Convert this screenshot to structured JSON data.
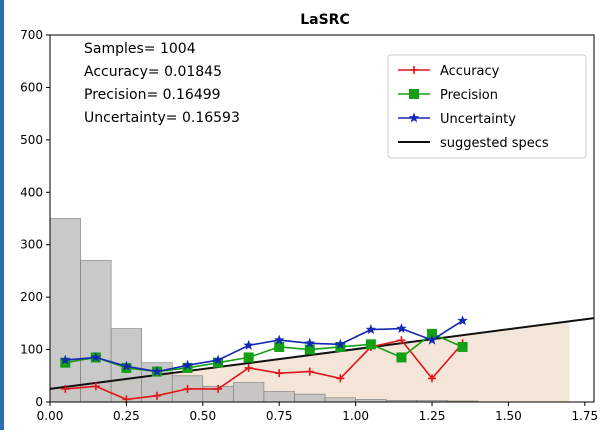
{
  "chart_data": {
    "type": "line",
    "title": "LaSRC",
    "xlabel": "",
    "ylabel": "",
    "xlim": [
      0.0,
      1.78
    ],
    "ylim": [
      0,
      700
    ],
    "x_ticks": [
      "0.00",
      "0.25",
      "0.50",
      "0.75",
      "1.00",
      "1.25",
      "1.50",
      "1.75"
    ],
    "y_ticks": [
      "0",
      "100",
      "200",
      "300",
      "400",
      "500",
      "600",
      "700"
    ],
    "grid": false,
    "legend_position": "top-right",
    "stats": [
      "Samples= 1004",
      "Accuracy= 0.01845",
      "Precision= 0.16499",
      "Uncertainty= 0.16593"
    ],
    "histogram": {
      "color": "#c0c0c0",
      "bin_width": 0.1,
      "bins": [
        {
          "x": 0.0,
          "value": 350
        },
        {
          "x": 0.1,
          "value": 270
        },
        {
          "x": 0.2,
          "value": 140
        },
        {
          "x": 0.3,
          "value": 75
        },
        {
          "x": 0.4,
          "value": 50
        },
        {
          "x": 0.5,
          "value": 30
        },
        {
          "x": 0.6,
          "value": 37
        },
        {
          "x": 0.7,
          "value": 20
        },
        {
          "x": 0.8,
          "value": 15
        },
        {
          "x": 0.9,
          "value": 8
        },
        {
          "x": 1.0,
          "value": 5
        },
        {
          "x": 1.1,
          "value": 3
        },
        {
          "x": 1.2,
          "value": 3
        },
        {
          "x": 1.3,
          "value": 2
        }
      ]
    },
    "spec_fill_color": "#f3e6d8",
    "series": [
      {
        "name": "Accuracy",
        "color": "#e0141a",
        "marker": "plus",
        "x": [
          0.05,
          0.15,
          0.25,
          0.35,
          0.45,
          0.55,
          0.65,
          0.75,
          0.85,
          0.95,
          1.05,
          1.15,
          1.25,
          1.35
        ],
        "y": [
          25,
          30,
          5,
          12,
          25,
          25,
          65,
          55,
          58,
          45,
          105,
          118,
          45,
          112
        ]
      },
      {
        "name": "Precision",
        "color": "#14a014",
        "marker": "square",
        "x": [
          0.05,
          0.15,
          0.25,
          0.35,
          0.45,
          0.55,
          0.65,
          0.75,
          0.85,
          0.95,
          1.05,
          1.15,
          1.25,
          1.35
        ],
        "y": [
          75,
          85,
          65,
          58,
          65,
          75,
          85,
          105,
          100,
          105,
          110,
          85,
          130,
          105
        ]
      },
      {
        "name": "Uncertainty",
        "color": "#1428b4",
        "marker": "star",
        "x": [
          0.05,
          0.15,
          0.25,
          0.35,
          0.45,
          0.55,
          0.65,
          0.75,
          0.85,
          0.95,
          1.05,
          1.15,
          1.25,
          1.35
        ],
        "y": [
          80,
          85,
          68,
          58,
          70,
          80,
          108,
          118,
          112,
          110,
          138,
          140,
          118,
          155
        ]
      },
      {
        "name": "suggested specs",
        "color": "#111111",
        "marker": "none",
        "x": [
          0.0,
          1.78
        ],
        "y": [
          25,
          160
        ]
      }
    ]
  }
}
